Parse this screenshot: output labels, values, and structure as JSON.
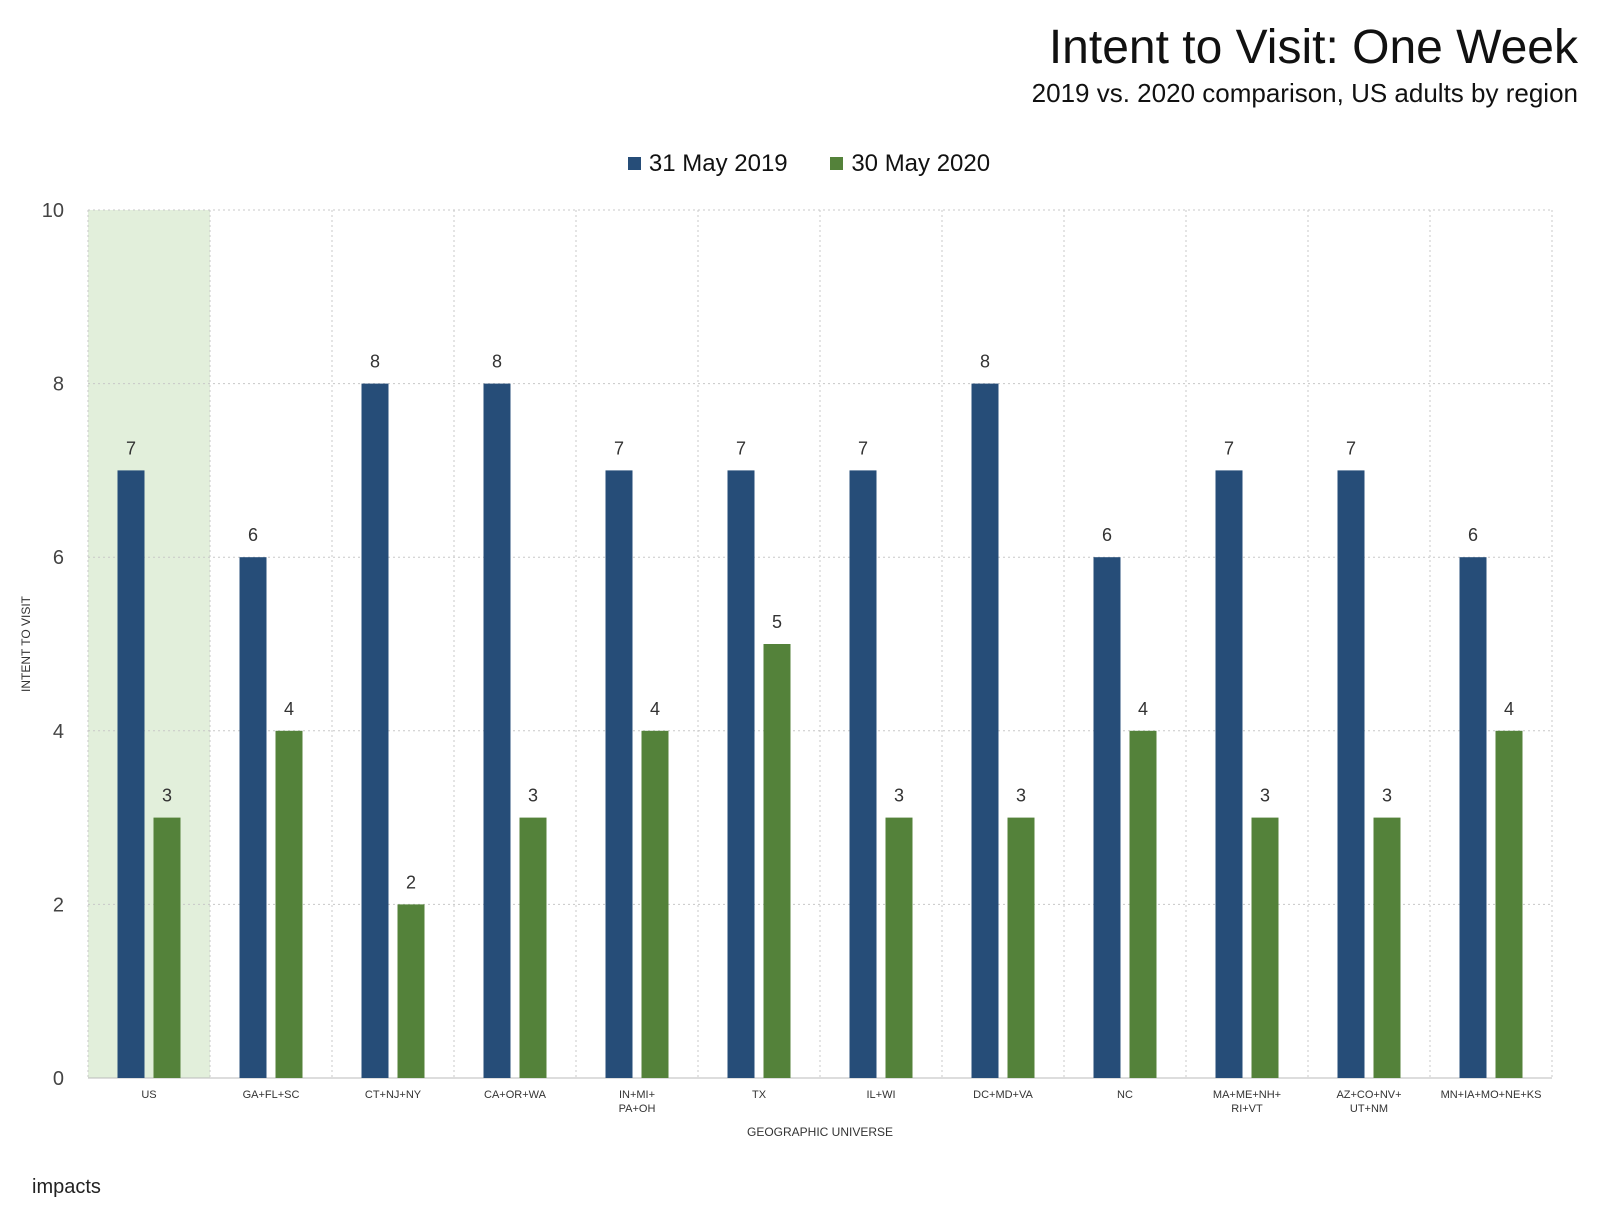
{
  "chart_data": {
    "type": "bar",
    "title": "Intent to Visit: One Week",
    "subtitle": "2019 vs. 2020 comparison, US adults by region",
    "xlabel": "GEOGRAPHIC UNIVERSE",
    "ylabel": "INTENT TO VISIT",
    "ylim": [
      0,
      10
    ],
    "yticks": [
      0,
      2,
      4,
      6,
      8,
      10
    ],
    "grid": true,
    "legend_position": "top-center",
    "categories": [
      [
        "US"
      ],
      [
        "GA+FL+SC"
      ],
      [
        "CT+NJ+NY"
      ],
      [
        "CA+OR+WA"
      ],
      [
        "IN+MI+",
        "PA+OH"
      ],
      [
        "TX"
      ],
      [
        "IL+WI"
      ],
      [
        "DC+MD+VA"
      ],
      [
        "NC"
      ],
      [
        "MA+ME+NH+",
        "RI+VT"
      ],
      [
        "AZ+CO+NV+",
        "UT+NM"
      ],
      [
        "MN+IA+MO+NE+KS"
      ]
    ],
    "highlighted_category": 0,
    "series": [
      {
        "name": "31 May 2019",
        "color": "#264d78",
        "values": [
          7,
          6,
          8,
          8,
          7,
          7,
          7,
          8,
          6,
          7,
          7,
          6
        ]
      },
      {
        "name": "30 May 2020",
        "color": "#54823a",
        "values": [
          3,
          4,
          2,
          3,
          4,
          5,
          3,
          3,
          4,
          3,
          3,
          4
        ]
      }
    ],
    "highlight_color": "#e2efdb"
  },
  "brand": "impacts"
}
